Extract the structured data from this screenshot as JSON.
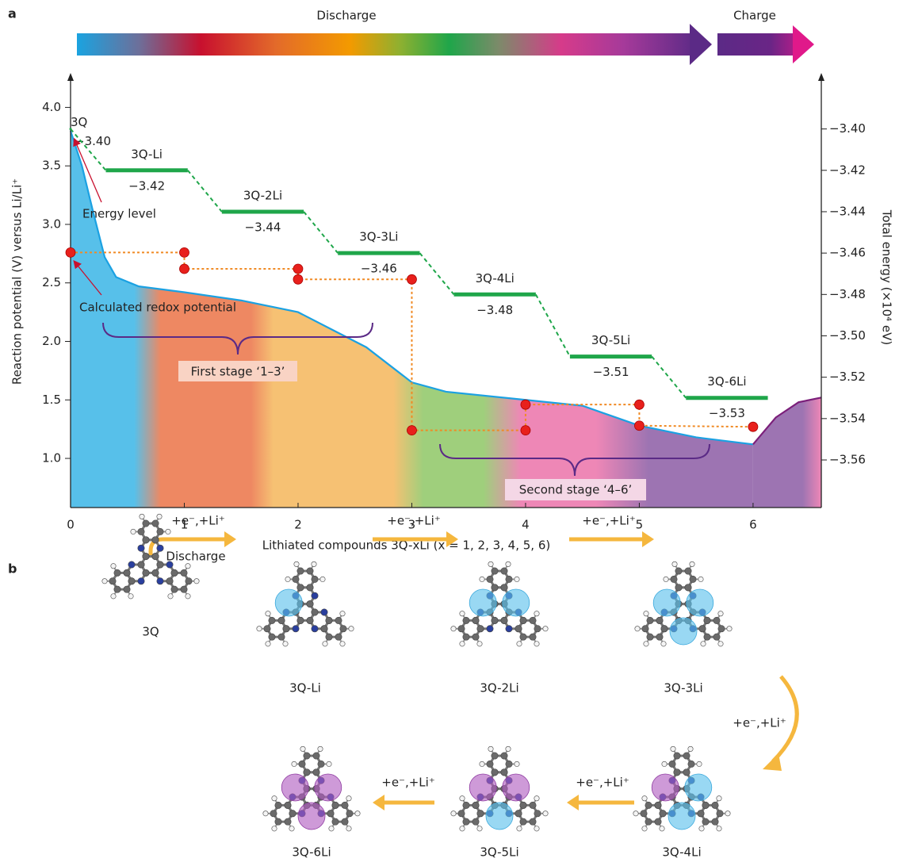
{
  "panel_a_label": "a",
  "panel_b_label": "b",
  "process_bar": {
    "discharge": "Discharge",
    "charge": "Charge"
  },
  "chart_data": {
    "type": "line",
    "xlabel": "Lithiated compounds 3Q-xLi (x = 1, 2, 3, 4, 5, 6)",
    "ylabel": "Reaction potential (V) versus Li/Li⁺",
    "y2label": "Total energy (×10⁴ eV)",
    "xlim": [
      0,
      6.6
    ],
    "xticks": [
      0,
      1,
      2,
      3,
      4,
      5,
      6
    ],
    "ylim": [
      0.58,
      4.24
    ],
    "yticks": [
      {
        "value": 1,
        "label": "1.0"
      },
      1.5,
      {
        "value": 2,
        "label": "2.0"
      },
      2.5,
      {
        "value": 3,
        "label": "3.0"
      },
      3.5,
      {
        "value": 4,
        "label": "4.0"
      }
    ],
    "y2lim": [
      -3.583,
      -3.376
    ],
    "y2ticks": [
      {
        "value": -3.4,
        "label": "−3.40"
      },
      {
        "value": -3.42,
        "label": "−3.42"
      },
      {
        "value": -3.44,
        "label": "−3.44"
      },
      {
        "value": -3.46,
        "label": "−3.46"
      },
      {
        "value": -3.48,
        "label": "−3.48"
      },
      {
        "value": -3.5,
        "label": "−3.50"
      },
      {
        "value": -3.52,
        "label": "−3.52"
      },
      {
        "value": -3.54,
        "label": "−3.54"
      },
      {
        "value": -3.56,
        "label": "−3.56"
      }
    ],
    "series": [
      {
        "color": "#1ba1e2",
        "x": [
          0,
          0.1,
          0.2,
          0.3,
          0.4,
          0.6,
          1,
          1.5,
          2,
          2.3,
          2.6,
          3,
          3.3,
          4,
          4.5,
          5,
          5.5,
          6
        ],
        "values": [
          3.8,
          3.5,
          3.1,
          2.72,
          2.55,
          2.47,
          2.42,
          2.35,
          2.25,
          2.1,
          1.95,
          1.65,
          1.57,
          1.5,
          1.45,
          1.28,
          1.18,
          1.12
        ]
      },
      {
        "color": "#7b1f7a",
        "x": [
          6,
          6.2,
          6.4,
          6.6
        ],
        "values": [
          1.12,
          1.35,
          1.48,
          1.52
        ]
      }
    ],
    "redox_potential": {
      "color": "#e8201c",
      "line_color": "#f08a24",
      "x": [
        0,
        1,
        1,
        2,
        2,
        3,
        3,
        4,
        4,
        5,
        5,
        6
      ],
      "values": [
        2.76,
        2.76,
        2.62,
        2.62,
        2.53,
        2.53,
        1.24,
        1.24,
        1.46,
        1.46,
        1.28,
        1.27
      ]
    },
    "energy_levels": {
      "axis": "y2",
      "color": "#1fa64a",
      "categories": [
        "3Q",
        "3Q-Li",
        "3Q-2Li",
        "3Q-3Li",
        "3Q-4Li",
        "3Q-5Li",
        "3Q-6Li"
      ],
      "values": [
        -3.4,
        -3.42,
        -3.44,
        -3.46,
        -3.48,
        -3.51,
        -3.53
      ],
      "value_labels": [
        "−3.40",
        "−3.42",
        "−3.44",
        "−3.46",
        "−3.48",
        "−3.51",
        "−3.53"
      ]
    },
    "annotations": {
      "energy_level": "Energy level",
      "redox": "Calculated redox potential",
      "first_stage": "First stage ‘1–3’",
      "second_stage": "Second stage ‘4–6’"
    }
  },
  "diagram": {
    "compounds": [
      "3Q",
      "3Q-Li",
      "3Q-2Li",
      "3Q-3Li",
      "3Q-4Li",
      "3Q-5Li",
      "3Q-6Li"
    ],
    "steps": [
      "+e⁻,+Li⁺",
      "+e⁻,+Li⁺",
      "+e⁻,+Li⁺",
      "+e⁻,+Li⁺",
      "+e⁻,+Li⁺",
      "+e⁻,+Li⁺"
    ],
    "discharge": "Discharge"
  }
}
